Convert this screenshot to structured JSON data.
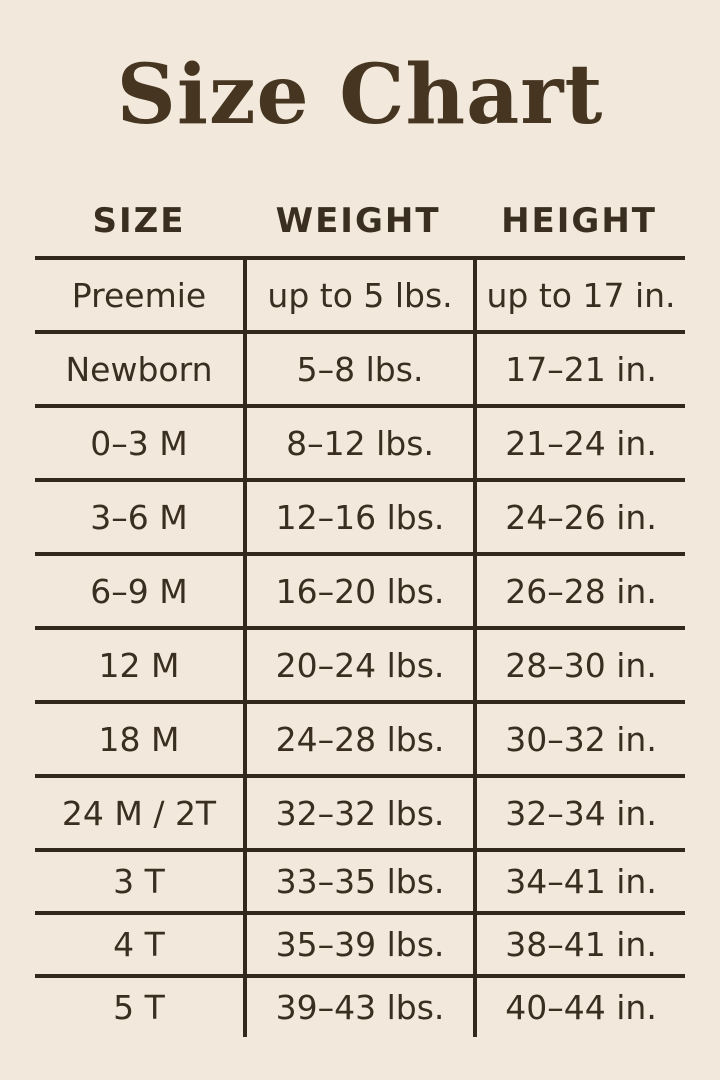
{
  "title": "Size Chart",
  "colors": {
    "background": "#f2e9dc",
    "title_text": "#463520",
    "body_text": "#3a2e21",
    "rule_lines": "#32281b"
  },
  "table": {
    "headers": [
      "SIZE",
      "WEIGHT",
      "HEIGHT"
    ],
    "rows": [
      {
        "size": "Preemie",
        "weight": "up to 5 lbs.",
        "height": "up to 17 in."
      },
      {
        "size": "Newborn",
        "weight": "5–8 lbs.",
        "height": "17–21 in."
      },
      {
        "size": "0–3 M",
        "weight": "8–12 lbs.",
        "height": "21–24 in."
      },
      {
        "size": "3–6 M",
        "weight": "12–16 lbs.",
        "height": "24–26 in."
      },
      {
        "size": "6–9 M",
        "weight": "16–20 lbs.",
        "height": "26–28 in."
      },
      {
        "size": "12 M",
        "weight": "20–24 lbs.",
        "height": "28–30 in."
      },
      {
        "size": "18 M",
        "weight": "24–28 lbs.",
        "height": "30–32 in."
      },
      {
        "size": "24 M / 2T",
        "weight": "32–32 lbs.",
        "height": "32–34 in."
      },
      {
        "size": "3 T",
        "weight": "33–35 lbs.",
        "height": "34–41 in."
      },
      {
        "size": "4 T",
        "weight": "35–39 lbs.",
        "height": "38–41 in."
      },
      {
        "size": "5 T",
        "weight": "39–43 lbs.",
        "height": "40–44 in."
      }
    ]
  },
  "chart_data": {
    "type": "table",
    "title": "Size Chart",
    "columns": [
      "SIZE",
      "WEIGHT",
      "HEIGHT"
    ],
    "rows": [
      [
        "Preemie",
        "up to 5 lbs.",
        "up to 17 in."
      ],
      [
        "Newborn",
        "5–8 lbs.",
        "17–21 in."
      ],
      [
        "0–3 M",
        "8–12 lbs.",
        "21–24 in."
      ],
      [
        "3–6 M",
        "12–16 lbs.",
        "24–26 in."
      ],
      [
        "6–9 M",
        "16–20 lbs.",
        "26–28 in."
      ],
      [
        "12 M",
        "20–24 lbs.",
        "28–30 in."
      ],
      [
        "18 M",
        "24–28 lbs.",
        "30–32 in."
      ],
      [
        "24 M / 2T",
        "32–32 lbs.",
        "32–34 in."
      ],
      [
        "3 T",
        "33–35 lbs.",
        "34–41 in."
      ],
      [
        "4 T",
        "35–39 lbs.",
        "38–41 in."
      ],
      [
        "5 T",
        "39–43 lbs.",
        "40–44 in."
      ]
    ]
  }
}
